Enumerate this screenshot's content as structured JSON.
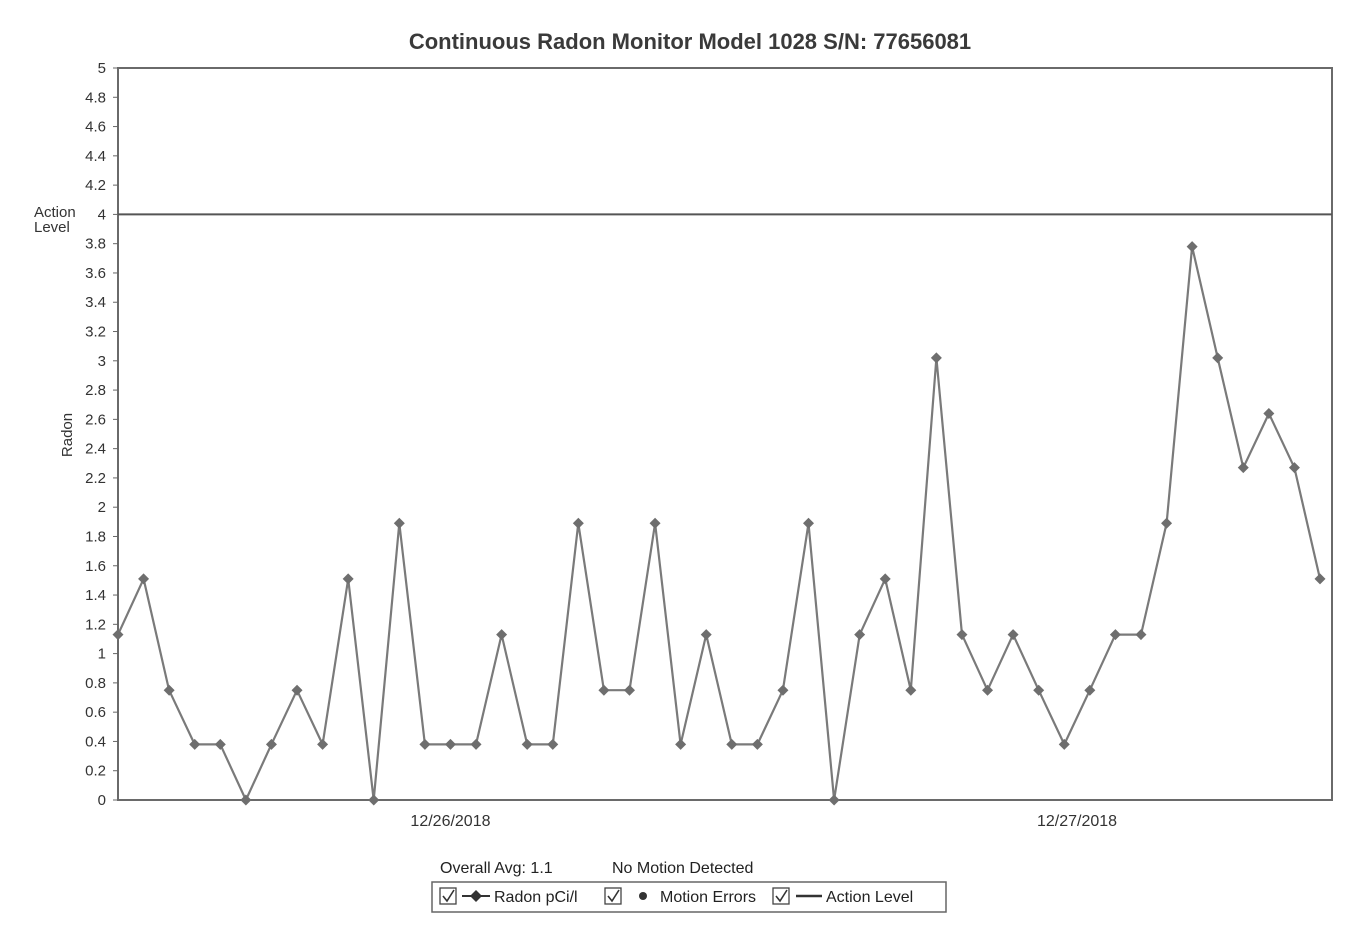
{
  "chart_data": {
    "type": "line",
    "title": "Continuous Radon Monitor Model 1028 S/N: 77656081",
    "ylabel": "Radon",
    "ylim": [
      0,
      5
    ],
    "y_ticks": [
      "0",
      "0.2",
      "0.4",
      "0.6",
      "0.8",
      "1",
      "1.2",
      "1.4",
      "1.6",
      "1.8",
      "2",
      "2.2",
      "2.4",
      "2.6",
      "2.8",
      "3",
      "3.2",
      "3.4",
      "3.6",
      "3.8",
      "4",
      "4.2",
      "4.4",
      "4.6",
      "4.8",
      "5"
    ],
    "y_tick_values": [
      0,
      0.2,
      0.4,
      0.6,
      0.8,
      1,
      1.2,
      1.4,
      1.6,
      1.8,
      2,
      2.2,
      2.4,
      2.6,
      2.8,
      3,
      3.2,
      3.4,
      3.6,
      3.8,
      4,
      4.2,
      4.4,
      4.6,
      4.8,
      5
    ],
    "action_level_label": "Action Level",
    "action_level": 4,
    "x_date_labels": [
      {
        "label": "12/26/2018",
        "index": 13
      },
      {
        "label": "12/27/2018",
        "index": 37.5
      }
    ],
    "series": [
      {
        "name": "Radon pCi/l",
        "values": [
          1.13,
          1.51,
          0.75,
          0.38,
          0.38,
          0,
          0.38,
          0.75,
          0.38,
          1.51,
          0,
          1.89,
          0.38,
          0.38,
          0.38,
          1.13,
          0.38,
          0.38,
          1.89,
          0.75,
          0.75,
          1.89,
          0.38,
          1.13,
          0.38,
          0.38,
          0.75,
          1.89,
          0,
          1.13,
          1.51,
          0.75,
          3.02,
          1.13,
          0.75,
          1.13,
          0.75,
          0.38,
          0.75,
          1.13,
          1.13,
          1.89,
          3.78,
          3.02,
          2.27,
          2.64,
          2.27,
          1.51
        ]
      }
    ],
    "grid": false,
    "legend_position": "bottom",
    "overall_avg": "Overall Avg: 1.1",
    "motion_status": "No Motion Detected",
    "legend": {
      "radon": "Radon pCi/l",
      "motion": "Motion Errors",
      "action": "Action Level"
    }
  },
  "colors": {
    "line": "#7a7a7a",
    "marker": "#6e6e6e",
    "axis": "#555555",
    "text": "#333333"
  }
}
